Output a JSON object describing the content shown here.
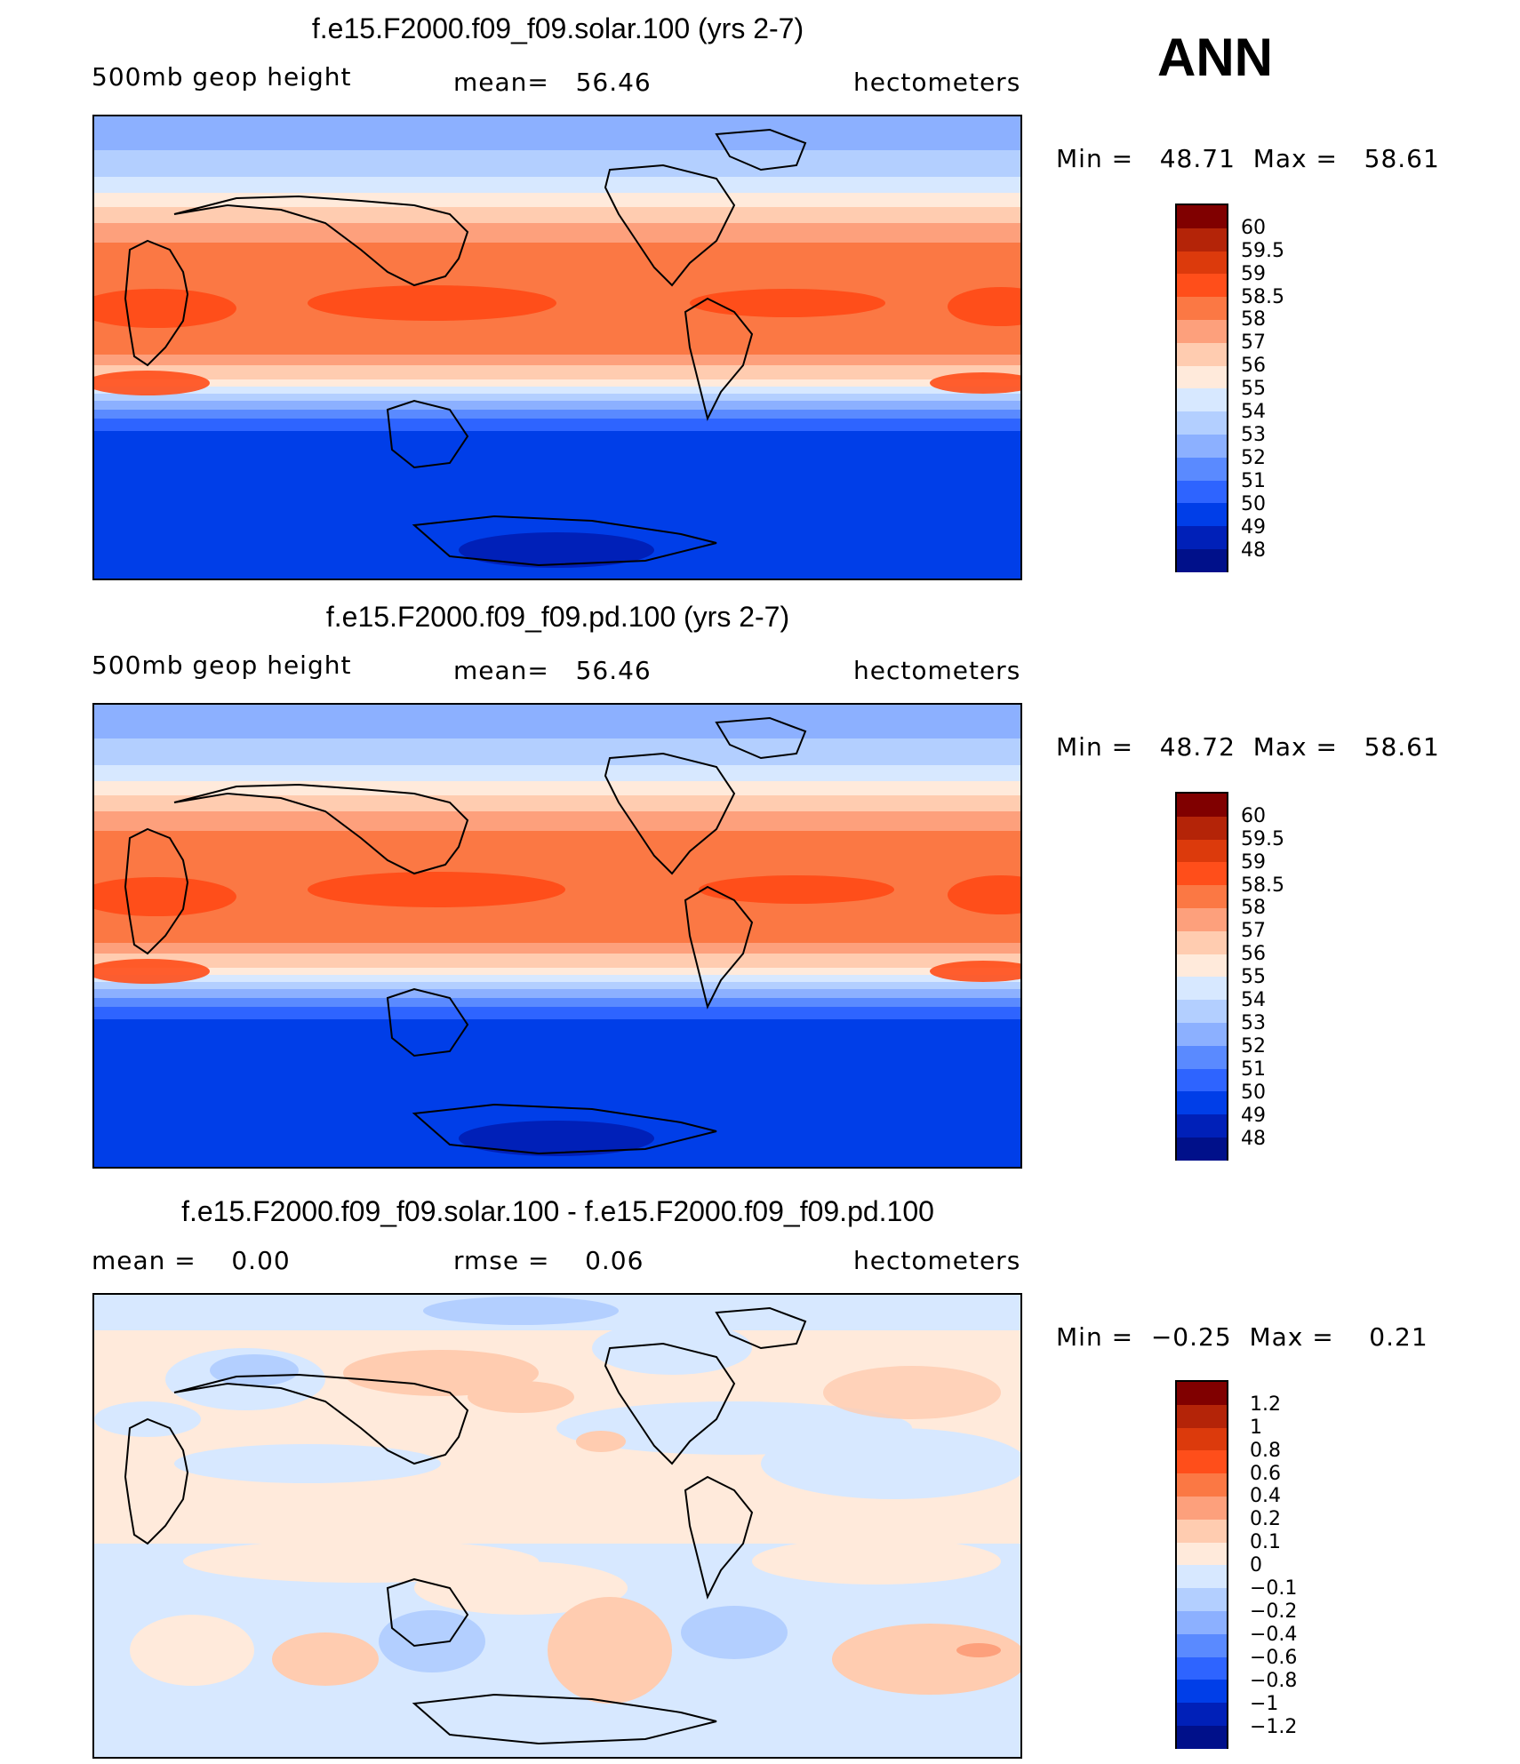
{
  "season": "ANN",
  "chart_data": [
    {
      "type": "heatmap",
      "title": "f.e15.F2000.f09_f09.solar.100 (yrs 2-7)",
      "left_label": "500mb geop height",
      "center_label": "mean=   56.46",
      "units": "hectometers",
      "minmax": "Min =   48.71  Max =   58.61",
      "colorbar_labels": [
        "60",
        "59.5",
        "59",
        "58.5",
        "58",
        "57",
        "56",
        "55",
        "54",
        "53",
        "52",
        "51",
        "50",
        "49",
        "48"
      ],
      "colors": [
        "#800000",
        "#b42408",
        "#dc3a0c",
        "#ff4e1a",
        "#fb7844",
        "#fda07c",
        "#ffccb0",
        "#ffeadb",
        "#d7e8ff",
        "#b3cfff",
        "#8cb0ff",
        "#5a8aff",
        "#2e64ff",
        "#003ee8",
        "#0020b8",
        "#00108a"
      ]
    },
    {
      "type": "heatmap",
      "title": "f.e15.F2000.f09_f09.pd.100 (yrs 2-7)",
      "left_label": "500mb geop height",
      "center_label": "mean=   56.46",
      "units": "hectometers",
      "minmax": "Min =   48.72  Max =   58.61",
      "colorbar_labels": [
        "60",
        "59.5",
        "59",
        "58.5",
        "58",
        "57",
        "56",
        "55",
        "54",
        "53",
        "52",
        "51",
        "50",
        "49",
        "48"
      ],
      "colors": [
        "#800000",
        "#b42408",
        "#dc3a0c",
        "#ff4e1a",
        "#fb7844",
        "#fda07c",
        "#ffccb0",
        "#ffeadb",
        "#d7e8ff",
        "#b3cfff",
        "#8cb0ff",
        "#5a8aff",
        "#2e64ff",
        "#003ee8",
        "#0020b8",
        "#00108a"
      ]
    },
    {
      "type": "heatmap",
      "title": "f.e15.F2000.f09_f09.solar.100 - f.e15.F2000.f09_f09.pd.100",
      "left_label": "mean =    0.00",
      "center_label": "rmse =    0.06",
      "units": "hectometers",
      "minmax": "Min =  −0.25  Max =    0.21",
      "colorbar_labels": [
        "1.2",
        "1",
        "0.8",
        "0.6",
        "0.4",
        "0.2",
        "0.1",
        "0",
        "−0.1",
        "−0.2",
        "−0.4",
        "−0.6",
        "−0.8",
        "−1",
        "−1.2"
      ],
      "colors": [
        "#800000",
        "#b42408",
        "#dc3a0c",
        "#ff4e1a",
        "#fb7844",
        "#fda07c",
        "#ffccb0",
        "#ffeadb",
        "#d7e8ff",
        "#b3cfff",
        "#8cb0ff",
        "#5a8aff",
        "#2e64ff",
        "#003ee8",
        "#0020b8",
        "#00108a"
      ]
    }
  ]
}
